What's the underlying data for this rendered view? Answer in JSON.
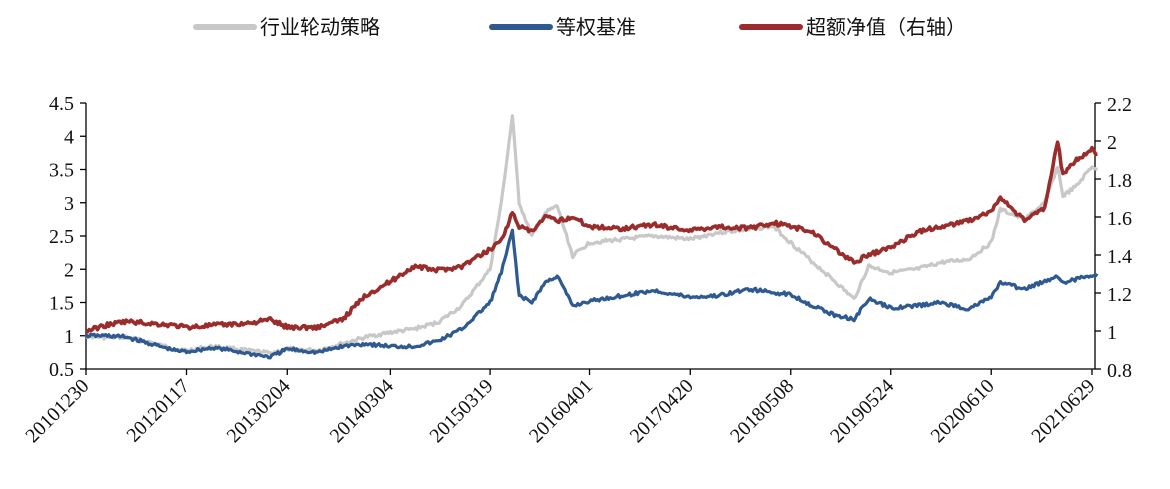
{
  "chart_data": {
    "type": "line",
    "legend_position": "top",
    "grid": false,
    "title": "",
    "xlabel": "",
    "ylabel": "",
    "y_left_ticks": [
      "0.5",
      "1",
      "1.5",
      "2",
      "2.5",
      "3",
      "3.5",
      "4",
      "4.5"
    ],
    "y_left_range": [
      0.5,
      4.5
    ],
    "y_right_ticks": [
      "0.8",
      "1",
      "1.2",
      "1.4",
      "1.6",
      "1.8",
      "2",
      "2.2"
    ],
    "y_right_range": [
      0.8,
      2.2
    ],
    "x_ticks": [
      "20101230",
      "20120117",
      "20130204",
      "20140304",
      "20150319",
      "20160401",
      "20170420",
      "20180508",
      "20190524",
      "20200610",
      "20210629"
    ],
    "series": [
      {
        "name": "行业轮动策略",
        "axis": "left",
        "color": "#c8c8c8",
        "points": [
          [
            "20101230",
            1.0
          ],
          [
            "20110315",
            0.97
          ],
          [
            "20110601",
            0.98
          ],
          [
            "20110901",
            0.9
          ],
          [
            "20111201",
            0.8
          ],
          [
            "20120117",
            0.78
          ],
          [
            "20120501",
            0.84
          ],
          [
            "20120901",
            0.78
          ],
          [
            "20121201",
            0.74
          ],
          [
            "20130204",
            0.8
          ],
          [
            "20130601",
            0.78
          ],
          [
            "20130901",
            0.88
          ],
          [
            "20131201",
            0.98
          ],
          [
            "20140304",
            1.05
          ],
          [
            "20140601",
            1.1
          ],
          [
            "20140901",
            1.2
          ],
          [
            "20141201",
            1.45
          ],
          [
            "20150319",
            2.0
          ],
          [
            "20150501",
            3.0
          ],
          [
            "20150612",
            4.3
          ],
          [
            "20150708",
            3.0
          ],
          [
            "20150825",
            2.5
          ],
          [
            "20151015",
            2.85
          ],
          [
            "20151130",
            2.95
          ],
          [
            "20160128",
            2.2
          ],
          [
            "20160401",
            2.4
          ],
          [
            "20160801",
            2.45
          ],
          [
            "20161201",
            2.5
          ],
          [
            "20170420",
            2.45
          ],
          [
            "20170801",
            2.55
          ],
          [
            "20171201",
            2.6
          ],
          [
            "20180301",
            2.65
          ],
          [
            "20180508",
            2.4
          ],
          [
            "20180801",
            2.1
          ],
          [
            "20181015",
            1.85
          ],
          [
            "20190104",
            1.55
          ],
          [
            "20190301",
            2.05
          ],
          [
            "20190524",
            1.95
          ],
          [
            "20190901",
            2.0
          ],
          [
            "20191201",
            2.1
          ],
          [
            "20200315",
            2.15
          ],
          [
            "20200610",
            2.4
          ],
          [
            "20200715",
            2.9
          ],
          [
            "20201015",
            2.75
          ],
          [
            "20201231",
            3.0
          ],
          [
            "20210218",
            3.55
          ],
          [
            "20210310",
            3.1
          ],
          [
            "20210501",
            3.25
          ],
          [
            "20210629",
            3.55
          ],
          [
            "20210720",
            3.5
          ]
        ]
      },
      {
        "name": "等权基准",
        "axis": "left",
        "color": "#2e5a91",
        "points": [
          [
            "20101230",
            1.0
          ],
          [
            "20110315",
            1.0
          ],
          [
            "20110601",
            0.98
          ],
          [
            "20110901",
            0.88
          ],
          [
            "20111201",
            0.78
          ],
          [
            "20120117",
            0.76
          ],
          [
            "20120501",
            0.82
          ],
          [
            "20120901",
            0.74
          ],
          [
            "20121201",
            0.68
          ],
          [
            "20130204",
            0.8
          ],
          [
            "20130601",
            0.75
          ],
          [
            "20130901",
            0.84
          ],
          [
            "20131201",
            0.88
          ],
          [
            "20140304",
            0.84
          ],
          [
            "20140601",
            0.84
          ],
          [
            "20140901",
            0.92
          ],
          [
            "20141201",
            1.1
          ],
          [
            "20150319",
            1.5
          ],
          [
            "20150501",
            1.95
          ],
          [
            "20150612",
            2.58
          ],
          [
            "20150708",
            1.6
          ],
          [
            "20150825",
            1.5
          ],
          [
            "20151015",
            1.8
          ],
          [
            "20151130",
            1.9
          ],
          [
            "20160128",
            1.45
          ],
          [
            "20160401",
            1.52
          ],
          [
            "20160801",
            1.6
          ],
          [
            "20161201",
            1.68
          ],
          [
            "20170420",
            1.58
          ],
          [
            "20170801",
            1.6
          ],
          [
            "20171201",
            1.7
          ],
          [
            "20180301",
            1.65
          ],
          [
            "20180508",
            1.62
          ],
          [
            "20180801",
            1.45
          ],
          [
            "20181015",
            1.32
          ],
          [
            "20190104",
            1.25
          ],
          [
            "20190301",
            1.55
          ],
          [
            "20190524",
            1.42
          ],
          [
            "20190901",
            1.45
          ],
          [
            "20191201",
            1.5
          ],
          [
            "20200315",
            1.4
          ],
          [
            "20200610",
            1.58
          ],
          [
            "20200715",
            1.8
          ],
          [
            "20201015",
            1.7
          ],
          [
            "20201231",
            1.82
          ],
          [
            "20210218",
            1.9
          ],
          [
            "20210310",
            1.8
          ],
          [
            "20210501",
            1.85
          ],
          [
            "20210629",
            1.92
          ],
          [
            "20210720",
            1.9
          ]
        ]
      },
      {
        "name": "超额净值（右轴）",
        "axis": "right",
        "color": "#9b2c2c",
        "points": [
          [
            "20101230",
            1.0
          ],
          [
            "20110315",
            1.03
          ],
          [
            "20110601",
            1.05
          ],
          [
            "20110901",
            1.04
          ],
          [
            "20111201",
            1.03
          ],
          [
            "20120117",
            1.02
          ],
          [
            "20120501",
            1.03
          ],
          [
            "20120901",
            1.04
          ],
          [
            "20121201",
            1.06
          ],
          [
            "20130204",
            1.02
          ],
          [
            "20130601",
            1.02
          ],
          [
            "20130901",
            1.06
          ],
          [
            "20131201",
            1.19
          ],
          [
            "20140304",
            1.26
          ],
          [
            "20140601",
            1.34
          ],
          [
            "20140901",
            1.32
          ],
          [
            "20141201",
            1.34
          ],
          [
            "20150319",
            1.43
          ],
          [
            "20150501",
            1.48
          ],
          [
            "20150612",
            1.62
          ],
          [
            "20150708",
            1.55
          ],
          [
            "20150825",
            1.52
          ],
          [
            "20151015",
            1.6
          ],
          [
            "20151130",
            1.58
          ],
          [
            "20160128",
            1.6
          ],
          [
            "20160401",
            1.55
          ],
          [
            "20160801",
            1.54
          ],
          [
            "20161201",
            1.56
          ],
          [
            "20170420",
            1.53
          ],
          [
            "20170801",
            1.55
          ],
          [
            "20171201",
            1.54
          ],
          [
            "20180301",
            1.57
          ],
          [
            "20180508",
            1.55
          ],
          [
            "20180801",
            1.52
          ],
          [
            "20181015",
            1.44
          ],
          [
            "20190104",
            1.36
          ],
          [
            "20190301",
            1.4
          ],
          [
            "20190524",
            1.44
          ],
          [
            "20190901",
            1.52
          ],
          [
            "20191201",
            1.55
          ],
          [
            "20200315",
            1.58
          ],
          [
            "20200610",
            1.63
          ],
          [
            "20200715",
            1.7
          ],
          [
            "20201015",
            1.58
          ],
          [
            "20201231",
            1.65
          ],
          [
            "20210218",
            2.0
          ],
          [
            "20210310",
            1.82
          ],
          [
            "20210501",
            1.9
          ],
          [
            "20210629",
            1.96
          ],
          [
            "20210720",
            1.93
          ]
        ]
      }
    ]
  }
}
